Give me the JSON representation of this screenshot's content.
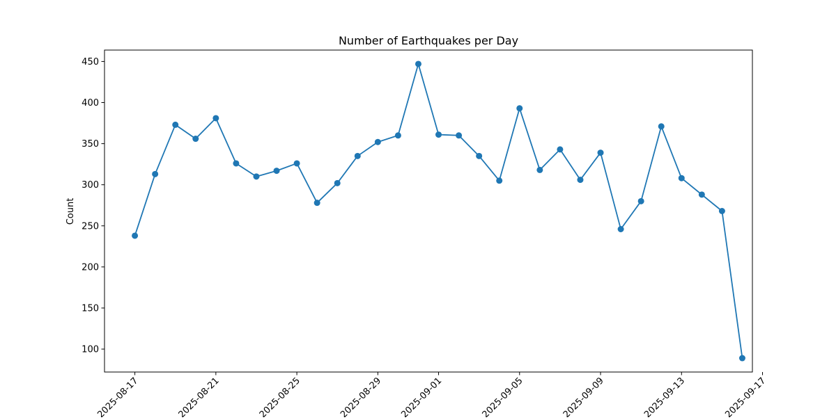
{
  "chart_data": {
    "type": "line",
    "title": "Number of Earthquakes per Day",
    "xlabel": "",
    "ylabel": "Count",
    "x": [
      "2025-08-17",
      "2025-08-18",
      "2025-08-19",
      "2025-08-20",
      "2025-08-21",
      "2025-08-22",
      "2025-08-23",
      "2025-08-24",
      "2025-08-25",
      "2025-08-26",
      "2025-08-27",
      "2025-08-28",
      "2025-08-29",
      "2025-08-30",
      "2025-08-31",
      "2025-09-01",
      "2025-09-02",
      "2025-09-03",
      "2025-09-04",
      "2025-09-05",
      "2025-09-06",
      "2025-09-07",
      "2025-09-08",
      "2025-09-09",
      "2025-09-10",
      "2025-09-11",
      "2025-09-12",
      "2025-09-13",
      "2025-09-14",
      "2025-09-15",
      "2025-09-16"
    ],
    "series": [
      {
        "values": [
          238,
          313,
          373,
          356,
          381,
          326,
          310,
          317,
          326,
          278,
          302,
          335,
          352,
          360,
          447,
          361,
          360,
          335,
          305,
          393,
          318,
          343,
          306,
          339,
          246,
          280,
          371,
          308,
          288,
          268,
          89
        ],
        "color": "#1f77b4"
      }
    ],
    "xlim": [
      "2025-08-15T12:00",
      "2025-09-16T12:00"
    ],
    "ylim": [
      72.1,
      463.9
    ],
    "x_ticks": [
      "2025-08-17",
      "2025-08-21",
      "2025-08-25",
      "2025-08-29",
      "2025-09-01",
      "2025-09-05",
      "2025-09-09",
      "2025-09-13",
      "2025-09-17"
    ],
    "y_ticks": [
      100,
      150,
      200,
      250,
      300,
      350,
      400,
      450
    ],
    "grid": false,
    "legend": "none"
  }
}
